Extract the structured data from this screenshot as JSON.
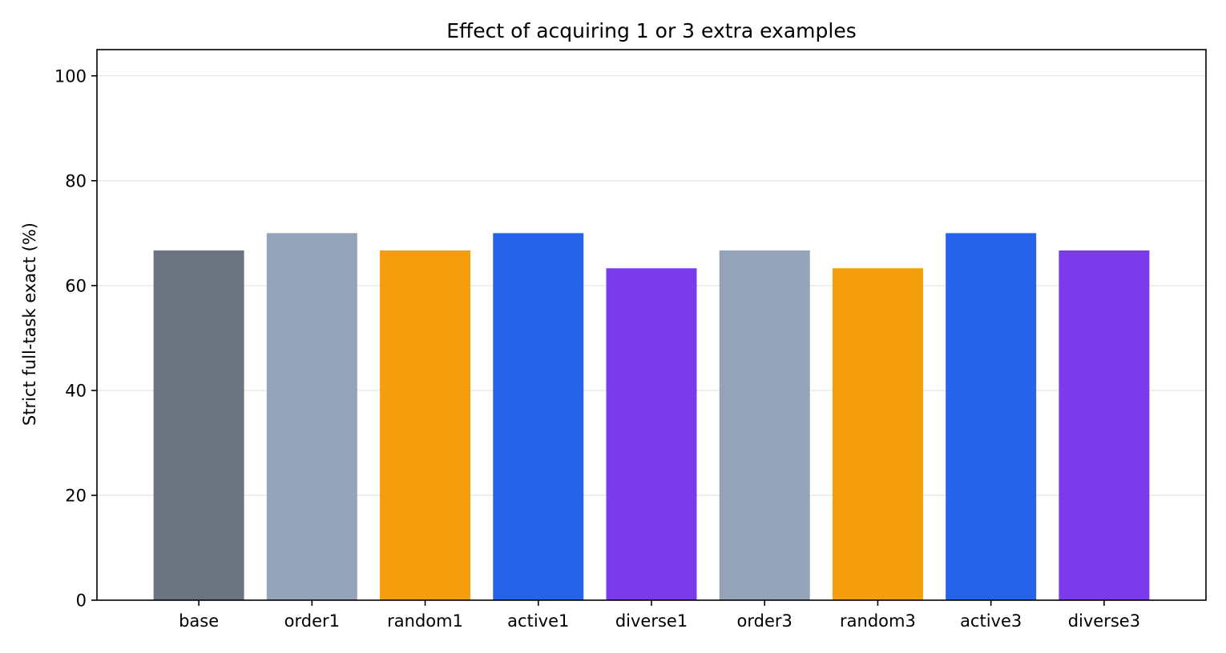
{
  "chart_data": {
    "type": "bar",
    "title": "Effect of acquiring 1 or 3 extra examples",
    "xlabel": "",
    "ylabel": "Strict full-task exact (%)",
    "categories": [
      "base",
      "order1",
      "random1",
      "active1",
      "diverse1",
      "order3",
      "random3",
      "active3",
      "diverse3"
    ],
    "values": [
      66.7,
      70.0,
      66.7,
      70.0,
      63.3,
      66.7,
      63.3,
      70.0,
      66.7
    ],
    "colors": [
      "#6b7280",
      "#94a3b8",
      "#f59e0b",
      "#2563eb",
      "#7c3aed",
      "#94a3b8",
      "#f59e0b",
      "#2563eb",
      "#7c3aed"
    ],
    "ylim": [
      0,
      105
    ],
    "yticks": [
      0,
      20,
      40,
      60,
      80,
      100
    ],
    "grid": "horizontal",
    "legend": "none"
  }
}
